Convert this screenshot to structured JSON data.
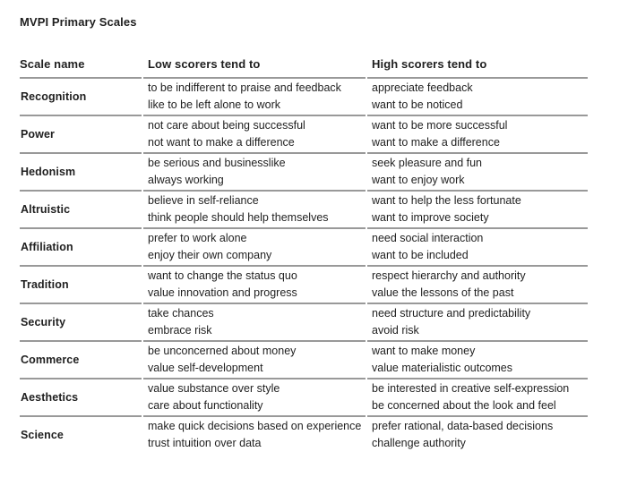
{
  "title": "MVPI Primary Scales",
  "table": {
    "headers": [
      "Scale name",
      "Low scorers tend to",
      "High scorers tend to"
    ],
    "rows": [
      {
        "scale": "Recognition",
        "low": [
          "to be indifferent to praise and feedback",
          "like to be left alone to work"
        ],
        "high": [
          "appreciate feedback",
          "want to be noticed"
        ]
      },
      {
        "scale": "Power",
        "low": [
          "not care about being successful",
          "not want to make a difference"
        ],
        "high": [
          "want to be more successful",
          "want to make a difference"
        ]
      },
      {
        "scale": "Hedonism",
        "low": [
          "be serious and businesslike",
          "always working"
        ],
        "high": [
          "seek pleasure and fun",
          "want to enjoy work"
        ]
      },
      {
        "scale": "Altruistic",
        "low": [
          "believe in self-reliance",
          "think people should help themselves"
        ],
        "high": [
          "want to help the less fortunate",
          "want to improve society"
        ]
      },
      {
        "scale": "Affiliation",
        "low": [
          "prefer to work alone",
          "enjoy their own company"
        ],
        "high": [
          "need social interaction",
          "want to be included"
        ]
      },
      {
        "scale": "Tradition",
        "low": [
          "want to change the status quo",
          "value innovation and progress"
        ],
        "high": [
          "respect hierarchy and authority",
          "value the lessons of the past"
        ]
      },
      {
        "scale": "Security",
        "low": [
          "take chances",
          "embrace risk"
        ],
        "high": [
          "need structure and predictability",
          "avoid risk"
        ]
      },
      {
        "scale": "Commerce",
        "low": [
          "be unconcerned about money",
          "value self-development"
        ],
        "high": [
          "want to make money",
          "value materialistic outcomes"
        ]
      },
      {
        "scale": "Aesthetics",
        "low": [
          "value substance over style",
          "care about functionality"
        ],
        "high": [
          "be interested in creative self-expression",
          "be concerned about the look and feel"
        ]
      },
      {
        "scale": "Science",
        "low": [
          "make quick decisions based on experience",
          "trust intuition over data"
        ],
        "high": [
          "prefer rational, data-based decisions",
          "challenge authority"
        ]
      }
    ]
  },
  "colors": {
    "text": "#1f1f1f",
    "border": "#999999",
    "background": "#ffffff"
  }
}
